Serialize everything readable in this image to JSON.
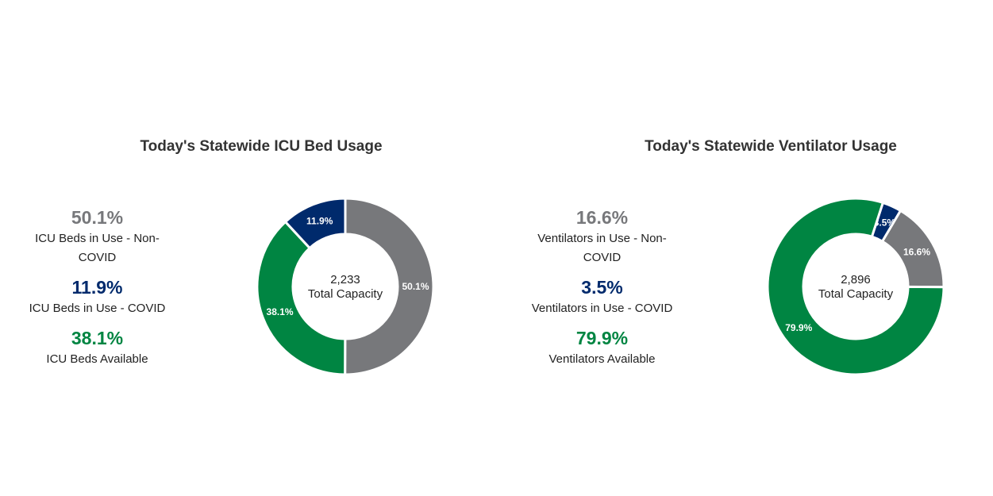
{
  "chart_data": [
    {
      "type": "pie",
      "title": "Today's Statewide ICU Bed Usage",
      "center_value": "2,233",
      "center_label": "Total Capacity",
      "slices": [
        {
          "label": "ICU Beds in Use - Non-COVID",
          "value": 50.1,
          "display": "50.1%",
          "color": "#77787b"
        },
        {
          "label": "ICU Beds Available",
          "value": 38.1,
          "display": "38.1%",
          "color": "#008542"
        },
        {
          "label": "ICU Beds in Use - COVID",
          "value": 11.9,
          "display": "11.9%",
          "color": "#002a6c"
        }
      ],
      "stats": [
        {
          "value": "50.1%",
          "label": "ICU Beds in Use - Non-COVID",
          "color": "#77787b"
        },
        {
          "value": "11.9%",
          "label": "ICU Beds in Use - COVID",
          "color": "#002a6c"
        },
        {
          "value": "38.1%",
          "label": "ICU Beds Available",
          "color": "#008542"
        }
      ]
    },
    {
      "type": "pie",
      "title": "Today's Statewide Ventilator Usage",
      "center_value": "2,896",
      "center_label": "Total Capacity",
      "slices": [
        {
          "label": "Ventilators in Use - COVID",
          "value": 3.5,
          "display": "3.5%",
          "color": "#002a6c"
        },
        {
          "label": "Ventilators in Use - Non-COVID",
          "value": 16.6,
          "display": "16.6%",
          "color": "#77787b"
        },
        {
          "label": "Ventilators Available",
          "value": 79.9,
          "display": "79.9%",
          "color": "#008542"
        }
      ],
      "stats": [
        {
          "value": "16.6%",
          "label": "Ventilators in Use - Non-COVID",
          "color": "#77787b"
        },
        {
          "value": "3.5%",
          "label": "Ventilators in Use - COVID",
          "color": "#002a6c"
        },
        {
          "value": "79.9%",
          "label": "Ventilators Available",
          "color": "#008542"
        }
      ]
    }
  ]
}
